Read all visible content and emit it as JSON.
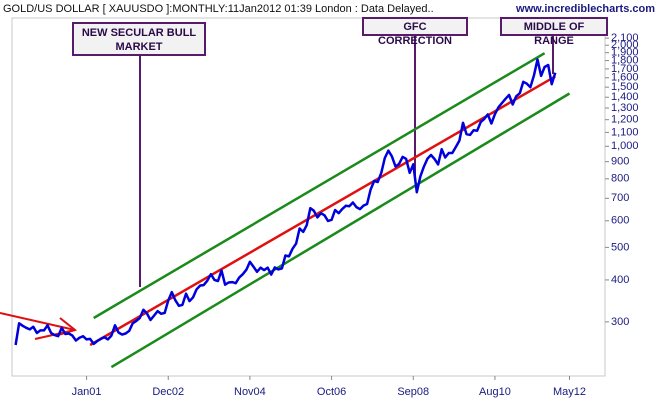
{
  "chart_data": {
    "type": "line",
    "title": "GOLD/US DOLLAR [ XAUUSDO ]:MONTHLY:11Jan2012 01:39 London : Data Delayed..",
    "source": "www.incrediblecharts.com",
    "log_scale": true,
    "xlim": [
      "1999-04",
      "2013-03"
    ],
    "ylim": [
      207,
      2410
    ],
    "xticks": [
      {
        "value": "2001-01",
        "label": "Jan01"
      },
      {
        "value": "2002-12",
        "label": "Dec02"
      },
      {
        "value": "2004-11",
        "label": "Nov04"
      },
      {
        "value": "2006-10",
        "label": "Oct06"
      },
      {
        "value": "2008-09",
        "label": "Sep08"
      },
      {
        "value": "2010-08",
        "label": "Aug10"
      },
      {
        "value": "2012-05",
        "label": "May12"
      }
    ],
    "yticks": [
      300,
      400,
      500,
      600,
      700,
      800,
      900,
      {
        "value": 1000,
        "label": "1,000"
      },
      {
        "value": 1100,
        "label": "1,100"
      },
      {
        "value": 1200,
        "label": "1,200"
      },
      {
        "value": 1300,
        "label": "1,300"
      },
      {
        "value": 1400,
        "label": "1,400"
      },
      {
        "value": 1500,
        "label": "1,500"
      },
      {
        "value": 1600,
        "label": "1,600"
      },
      {
        "value": 1700,
        "label": "1,700"
      },
      {
        "value": 1800,
        "label": "1,800"
      },
      {
        "value": 1900,
        "label": "1,900"
      },
      {
        "value": 2000,
        "label": "2,000"
      },
      {
        "value": 2100,
        "label": "2,100"
      }
    ],
    "x": [
      "1999-05",
      "1999-06",
      "1999-07",
      "1999-08",
      "1999-09",
      "1999-10",
      "1999-11",
      "1999-12",
      "2000-01",
      "2000-02",
      "2000-03",
      "2000-04",
      "2000-05",
      "2000-06",
      "2000-07",
      "2000-08",
      "2000-09",
      "2000-10",
      "2000-11",
      "2000-12",
      "2001-01",
      "2001-02",
      "2001-03",
      "2001-04",
      "2001-05",
      "2001-06",
      "2001-07",
      "2001-08",
      "2001-09",
      "2001-10",
      "2001-11",
      "2001-12",
      "2002-01",
      "2002-02",
      "2002-03",
      "2002-04",
      "2002-05",
      "2002-06",
      "2002-07",
      "2002-08",
      "2002-09",
      "2002-10",
      "2002-11",
      "2002-12",
      "2003-01",
      "2003-02",
      "2003-03",
      "2003-04",
      "2003-05",
      "2003-06",
      "2003-07",
      "2003-08",
      "2003-09",
      "2003-10",
      "2003-11",
      "2003-12",
      "2004-01",
      "2004-02",
      "2004-03",
      "2004-04",
      "2004-05",
      "2004-06",
      "2004-07",
      "2004-08",
      "2004-09",
      "2004-10",
      "2004-11",
      "2004-12",
      "2005-01",
      "2005-02",
      "2005-03",
      "2005-04",
      "2005-05",
      "2005-06",
      "2005-07",
      "2005-08",
      "2005-09",
      "2005-10",
      "2005-11",
      "2005-12",
      "2006-01",
      "2006-02",
      "2006-03",
      "2006-04",
      "2006-05",
      "2006-06",
      "2006-07",
      "2006-08",
      "2006-09",
      "2006-10",
      "2006-11",
      "2006-12",
      "2007-01",
      "2007-02",
      "2007-03",
      "2007-04",
      "2007-05",
      "2007-06",
      "2007-07",
      "2007-08",
      "2007-09",
      "2007-10",
      "2007-11",
      "2007-12",
      "2008-01",
      "2008-02",
      "2008-03",
      "2008-04",
      "2008-05",
      "2008-06",
      "2008-07",
      "2008-08",
      "2008-09",
      "2008-10",
      "2008-11",
      "2008-12",
      "2009-01",
      "2009-02",
      "2009-03",
      "2009-04",
      "2009-05",
      "2009-06",
      "2009-07",
      "2009-08",
      "2009-09",
      "2009-10",
      "2009-11",
      "2009-12",
      "2010-01",
      "2010-02",
      "2010-03",
      "2010-04",
      "2010-05",
      "2010-06",
      "2010-07",
      "2010-08",
      "2010-09",
      "2010-10",
      "2010-11",
      "2010-12",
      "2011-01",
      "2011-02",
      "2011-03",
      "2011-04",
      "2011-05",
      "2011-06",
      "2011-07",
      "2011-08",
      "2011-09",
      "2011-10",
      "2011-11",
      "2011-12",
      "2012-01"
    ],
    "series": [
      {
        "color": "#0000dd",
        "values": [
          256,
          297,
          292,
          288,
          285,
          290,
          278,
          283,
          283,
          293,
          278,
          274,
          272,
          288,
          276,
          277,
          273,
          264,
          269,
          272,
          266,
          267,
          258,
          263,
          267,
          270,
          266,
          273,
          293,
          279,
          275,
          277,
          282,
          297,
          302,
          308,
          326,
          318,
          304,
          313,
          323,
          317,
          319,
          347,
          368,
          348,
          335,
          337,
          364,
          346,
          355,
          375,
          385,
          386,
          398,
          416,
          400,
          397,
          427,
          387,
          393,
          394,
          391,
          407,
          416,
          429,
          453,
          438,
          423,
          435,
          428,
          435,
          415,
          436,
          430,
          433,
          473,
          470,
          495,
          513,
          569,
          556,
          582,
          654,
          643,
          614,
          632,
          623,
          599,
          604,
          646,
          632,
          650,
          665,
          663,
          680,
          659,
          650,
          666,
          673,
          743,
          789,
          783,
          834,
          923,
          971,
          933,
          871,
          885,
          930,
          918,
          834,
          884,
          730,
          814,
          870,
          919,
          942,
          916,
          883,
          980,
          926,
          955,
          955,
          996,
          1040,
          1175,
          1087,
          1081,
          1116,
          1113,
          1180,
          1207,
          1244,
          1169,
          1246,
          1307,
          1346,
          1386,
          1421,
          1332,
          1409,
          1439,
          1556,
          1536,
          1500,
          1628,
          1813,
          1620,
          1722,
          1746,
          1531,
          1656
        ]
      }
    ],
    "trend_lines": [
      {
        "color": "#1a8a1a",
        "x": [
          "2001-03",
          "2011-10"
        ],
        "values": [
          308,
          1893
        ]
      },
      {
        "color": "#e01010",
        "x": [
          "2001-02",
          "2012-01"
        ],
        "values": [
          256,
          1615
        ]
      },
      {
        "color": "#1a8a1a",
        "x": [
          "2001-08",
          "2012-05"
        ],
        "values": [
          220,
          1436
        ]
      }
    ],
    "annotations": [
      {
        "text": "NEW SECULAR BULL MARKET"
      },
      {
        "text": "GFC CORRECTION"
      },
      {
        "text": "MIDDLE OF RANGE"
      }
    ]
  }
}
